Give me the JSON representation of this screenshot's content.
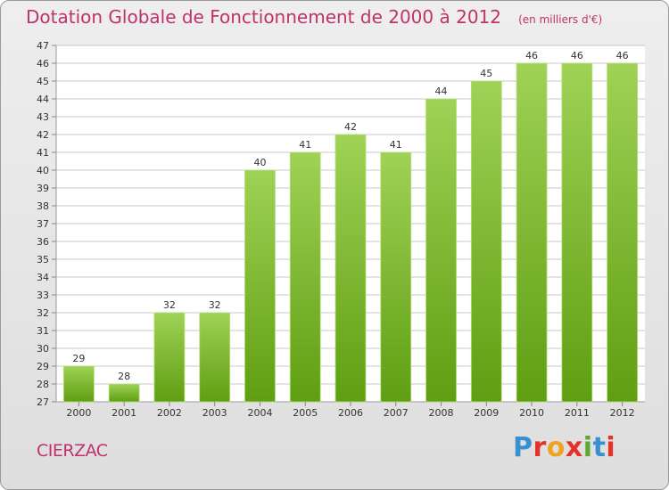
{
  "title": "Dotation Globale de Fonctionnement de 2000 à 2012",
  "unit_note": "(en milliers d'€)",
  "commune": "CIERZAC",
  "logo_text": "Proxiti",
  "colors": {
    "title": "#c0326a",
    "bar_top": "#9fd256",
    "bar_bottom": "#5f9e12",
    "grid": "#c9c9c9"
  },
  "chart_data": {
    "type": "bar",
    "title": "Dotation Globale de Fonctionnement de 2000 à 2012",
    "subtitle": "(en milliers d'€)",
    "categories": [
      "2000",
      "2001",
      "2002",
      "2003",
      "2004",
      "2005",
      "2006",
      "2007",
      "2008",
      "2009",
      "2010",
      "2011",
      "2012"
    ],
    "values": [
      29,
      28,
      32,
      32,
      40,
      41,
      42,
      41,
      44,
      45,
      46,
      46,
      46
    ],
    "xlabel": "",
    "ylabel": "",
    "ylim": [
      27,
      47
    ],
    "y_ticks": [
      27,
      28,
      29,
      30,
      31,
      32,
      33,
      34,
      35,
      36,
      37,
      38,
      39,
      40,
      41,
      42,
      43,
      44,
      45,
      46,
      47
    ],
    "grid": true,
    "legend": "none"
  }
}
